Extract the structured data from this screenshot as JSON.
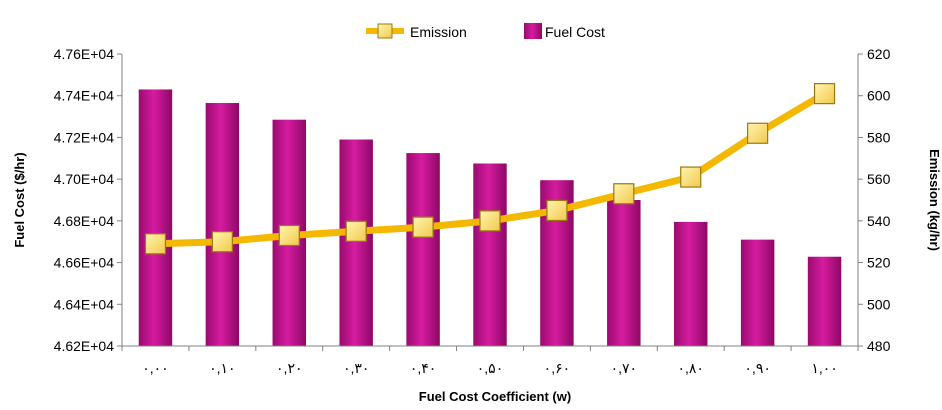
{
  "chart_data": {
    "type": "bar",
    "categories": [
      "۰,۰۰",
      "۰,۱۰",
      "۰,۲۰",
      "۰,۳۰",
      "۰,۴۰",
      "۰,۵۰",
      "۰,۶۰",
      "۰,۷۰",
      "۰,۸۰",
      "۰,۹۰",
      "۱,۰۰"
    ],
    "xlabel": "Fuel Cost Coefficient (w)",
    "ylabel": "Fuel Cost ($/hr)",
    "y2label": "Emission (kg/hr)",
    "ylim": [
      46200,
      47600
    ],
    "y2lim": [
      480,
      620
    ],
    "yticks": [
      "4.62E+04",
      "4.64E+04",
      "4.66E+04",
      "4.68E+04",
      "4.70E+04",
      "4.72E+04",
      "4.74E+04",
      "4.76E+04"
    ],
    "y2ticks": [
      "480",
      "500",
      "520",
      "540",
      "560",
      "580",
      "600",
      "620"
    ],
    "legend_position": "top",
    "grid": false,
    "series": [
      {
        "name": "Fuel Cost",
        "type": "bar",
        "axis": "left",
        "color": "#c0138f",
        "values": [
          47430,
          47365,
          47285,
          47190,
          47125,
          47075,
          46995,
          46900,
          46795,
          46710,
          46628
        ]
      },
      {
        "name": "Emission",
        "type": "line",
        "axis": "right",
        "color": "#f5b800",
        "marker_color": "#ffe680",
        "values": [
          529,
          530,
          533,
          535,
          537,
          540,
          545,
          553,
          561,
          582,
          601
        ]
      }
    ]
  }
}
